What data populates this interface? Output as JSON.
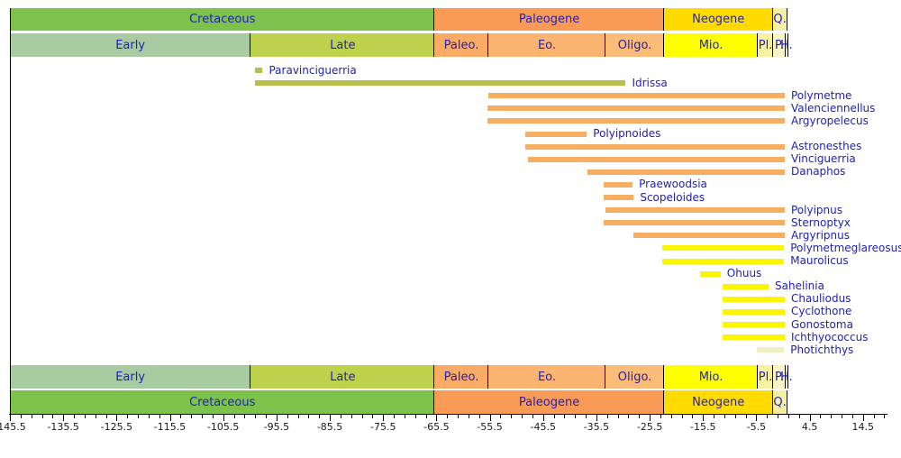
{
  "chart_data": {
    "type": "bar",
    "subtype": "geologic-fossil-range-chart",
    "title": "",
    "xlabel": "",
    "ylabel": "",
    "x_axis": {
      "unit": "Ma",
      "min": -145.5,
      "max": 19.1,
      "major_tick_step": 10,
      "minor_tick_step": 2,
      "major_tick_labels": [
        "-145.5",
        "-135.5",
        "-125.5",
        "-115.5",
        "-105.5",
        "-95.5",
        "-85.5",
        "-75.5",
        "-65.5",
        "-55.5",
        "-45.5",
        "-35.5",
        "-25.5",
        "-15.5",
        "-5.5",
        "4.5",
        "14.5"
      ]
    },
    "period_row": [
      {
        "label": "Cretaceous",
        "from": -145.5,
        "to": -66.0,
        "color": "#7dc24b"
      },
      {
        "label": "Paleogene",
        "from": -66.0,
        "to": -23.03,
        "color": "#f99b57"
      },
      {
        "label": "Neogene",
        "from": -23.03,
        "to": -2.58,
        "color": "#ffdb00"
      },
      {
        "label": "Q.",
        "from": -2.58,
        "to": 0.08,
        "color": "#f5f0a5"
      }
    ],
    "epoch_row": [
      {
        "label": "Early",
        "from": -145.5,
        "to": -100.5,
        "color": "#a8cba2"
      },
      {
        "label": "Late",
        "from": -100.5,
        "to": -66.0,
        "color": "#bed14d"
      },
      {
        "label": "Paleo.",
        "from": -66.0,
        "to": -56.0,
        "color": "#faac66"
      },
      {
        "label": "Eo.",
        "from": -56.0,
        "to": -33.9,
        "color": "#fab46f"
      },
      {
        "label": "Oligo.",
        "from": -33.9,
        "to": -23.03,
        "color": "#fbbc79"
      },
      {
        "label": "Mio.",
        "from": -23.03,
        "to": -5.33,
        "color": "#ffff00"
      },
      {
        "label": "Pl.",
        "from": -5.33,
        "to": -2.58,
        "color": "#f8f2a0"
      },
      {
        "label": "P.",
        "from": -2.58,
        "to": -0.13,
        "color": "#faf5c5"
      },
      {
        "label": "H.",
        "from": -0.13,
        "to": 0.08,
        "color": "#fdfae3"
      }
    ],
    "taxa": [
      {
        "name": "Paravinciguerria",
        "from": -99.6,
        "to": -98.1,
        "color": "#b9c04a"
      },
      {
        "name": "Idrissa",
        "from": -99.6,
        "to": -30.0,
        "color": "#b9c04a"
      },
      {
        "name": "Polymetme",
        "from": -55.8,
        "to": 0,
        "color": "#f6ae63"
      },
      {
        "name": "Valenciennellus",
        "from": -55.9,
        "to": 0,
        "color": "#f6ae63"
      },
      {
        "name": "Argyropelecus",
        "from": -55.9,
        "to": 0,
        "color": "#f6ae63"
      },
      {
        "name": "Polyipnoides",
        "from": -48.8,
        "to": -37.3,
        "color": "#f6ae63"
      },
      {
        "name": "Astronesthes",
        "from": -48.8,
        "to": 0,
        "color": "#f6ae63"
      },
      {
        "name": "Vinciguerria",
        "from": -48.4,
        "to": 0,
        "color": "#f6ae63"
      },
      {
        "name": "Danaphos",
        "from": -37.1,
        "to": 0,
        "color": "#f6ae63"
      },
      {
        "name": "Praewoodsia",
        "from": -34.1,
        "to": -28.7,
        "color": "#f6ae63"
      },
      {
        "name": "Scopeloides",
        "from": -34.1,
        "to": -28.5,
        "color": "#f6ae63"
      },
      {
        "name": "Polyipnus",
        "from": -33.8,
        "to": 0,
        "color": "#f6ae63"
      },
      {
        "name": "Sternoptyx",
        "from": -34.1,
        "to": 0,
        "color": "#f6ae63"
      },
      {
        "name": "Argyripnus",
        "from": -28.5,
        "to": 0,
        "color": "#f6ae63"
      },
      {
        "name": "Polymetmeglareosus",
        "from": -23.1,
        "to": -0.3,
        "color": "#fdf500"
      },
      {
        "name": "Maurolicus",
        "from": -23.1,
        "to": -0.3,
        "color": "#fdf500"
      },
      {
        "name": "Ohuus",
        "from": -16.0,
        "to": -12.2,
        "color": "#fdf500"
      },
      {
        "name": "Sahelinia",
        "from": -11.8,
        "to": -3.2,
        "color": "#fdf500"
      },
      {
        "name": "Chauliodus",
        "from": -11.8,
        "to": 0,
        "color": "#fdf500"
      },
      {
        "name": "Cyclothone",
        "from": -11.8,
        "to": 0,
        "color": "#fdf500"
      },
      {
        "name": "Gonostoma",
        "from": -11.8,
        "to": 0,
        "color": "#fdf500"
      },
      {
        "name": "Ichthyococcus",
        "from": -11.8,
        "to": 0,
        "color": "#fdf500"
      },
      {
        "name": "Photichthys",
        "from": -5.4,
        "to": -0.3,
        "color": "#efefc2"
      }
    ],
    "legend": null,
    "grid": false
  },
  "colors": {
    "label_text": "#2222ae",
    "tick_text": "#1a1a1a",
    "frame": "#000000",
    "background": "#ffffff"
  }
}
